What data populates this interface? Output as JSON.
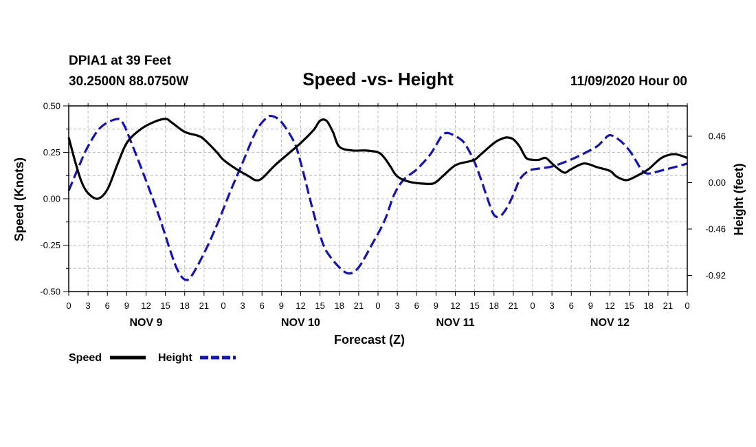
{
  "header": {
    "station": "DPIA1 at 39 Feet",
    "coords": "30.2500N 88.0750W",
    "title": "Speed -vs- Height",
    "timestamp": "11/09/2020 Hour 00"
  },
  "chart_data": {
    "type": "line",
    "title": "Speed -vs- Height",
    "xlabel": "Forecast (Z)",
    "ylabel": "Speed (Knots)",
    "y2label": "Height (feet)",
    "x_unit": "hours from 11/09/2020 00Z",
    "xlim": [
      0,
      96
    ],
    "ylim": [
      -0.5,
      0.5
    ],
    "y2lim": [
      -1.08,
      0.76
    ],
    "yticks": [
      "0.50",
      "0.25",
      "0.00",
      "-0.25",
      "-0.50"
    ],
    "yticks_values": [
      0.5,
      0.25,
      0,
      -0.25,
      -0.5
    ],
    "y2ticks": [
      "0.46",
      "0.00",
      "-0.46",
      "-0.92"
    ],
    "y2ticks_values": [
      0.46,
      0,
      -0.46,
      -0.92
    ],
    "xticks": [
      "0",
      "3",
      "6",
      "9",
      "12",
      "15",
      "18",
      "21",
      "0",
      "3",
      "6",
      "9",
      "12",
      "15",
      "18",
      "21",
      "0",
      "3",
      "6",
      "9",
      "12",
      "15",
      "18",
      "21",
      "0",
      "3",
      "6",
      "9",
      "12",
      "15",
      "18",
      "21",
      "0"
    ],
    "day_labels": [
      {
        "label": "NOV 9",
        "hour": 12
      },
      {
        "label": "NOV 10",
        "hour": 36
      },
      {
        "label": "NOV 11",
        "hour": 60
      },
      {
        "label": "NOV 12",
        "hour": 84
      }
    ],
    "grid": true,
    "legend_position": "bottom-left",
    "series": [
      {
        "name": "Speed",
        "axis": "left",
        "color": "#000000",
        "style": "solid",
        "points": [
          [
            0,
            0.33
          ],
          [
            1,
            0.2
          ],
          [
            2,
            0.09
          ],
          [
            3,
            0.03
          ],
          [
            4.5,
            0.0
          ],
          [
            6,
            0.05
          ],
          [
            7.5,
            0.18
          ],
          [
            9,
            0.3
          ],
          [
            11,
            0.37
          ],
          [
            13,
            0.41
          ],
          [
            15,
            0.43
          ],
          [
            16,
            0.41
          ],
          [
            18,
            0.36
          ],
          [
            20,
            0.34
          ],
          [
            21,
            0.32
          ],
          [
            23,
            0.25
          ],
          [
            24,
            0.21
          ],
          [
            26,
            0.16
          ],
          [
            28,
            0.12
          ],
          [
            29,
            0.1
          ],
          [
            30,
            0.11
          ],
          [
            32,
            0.18
          ],
          [
            34,
            0.24
          ],
          [
            36,
            0.3
          ],
          [
            38,
            0.37
          ],
          [
            39,
            0.42
          ],
          [
            40,
            0.42
          ],
          [
            41,
            0.36
          ],
          [
            42,
            0.28
          ],
          [
            44,
            0.26
          ],
          [
            46,
            0.26
          ],
          [
            48,
            0.25
          ],
          [
            49,
            0.22
          ],
          [
            50,
            0.17
          ],
          [
            51,
            0.12
          ],
          [
            53,
            0.09
          ],
          [
            56,
            0.08
          ],
          [
            57,
            0.09
          ],
          [
            58,
            0.12
          ],
          [
            60,
            0.18
          ],
          [
            62,
            0.2
          ],
          [
            63,
            0.21
          ],
          [
            64,
            0.24
          ],
          [
            66,
            0.3
          ],
          [
            67,
            0.32
          ],
          [
            68,
            0.33
          ],
          [
            69,
            0.32
          ],
          [
            70,
            0.28
          ],
          [
            71,
            0.22
          ],
          [
            72,
            0.21
          ],
          [
            73,
            0.21
          ],
          [
            74,
            0.22
          ],
          [
            75,
            0.19
          ],
          [
            76,
            0.16
          ],
          [
            77,
            0.14
          ],
          [
            78,
            0.16
          ],
          [
            80,
            0.19
          ],
          [
            82,
            0.17
          ],
          [
            84,
            0.15
          ],
          [
            85,
            0.12
          ],
          [
            86.5,
            0.1
          ],
          [
            88,
            0.12
          ],
          [
            90,
            0.16
          ],
          [
            92,
            0.22
          ],
          [
            94,
            0.24
          ],
          [
            96,
            0.22
          ]
        ]
      },
      {
        "name": "Height",
        "axis": "right",
        "color": "#1111cc",
        "style": "dashed",
        "points": [
          [
            0,
            -0.08
          ],
          [
            1.5,
            0.15
          ],
          [
            3,
            0.36
          ],
          [
            5,
            0.55
          ],
          [
            7.5,
            0.63
          ],
          [
            8.5,
            0.58
          ],
          [
            10,
            0.35
          ],
          [
            12,
            0.02
          ],
          [
            14,
            -0.33
          ],
          [
            16,
            -0.72
          ],
          [
            17,
            -0.88
          ],
          [
            18,
            -0.96
          ],
          [
            19,
            -0.93
          ],
          [
            21,
            -0.7
          ],
          [
            23,
            -0.42
          ],
          [
            25,
            -0.1
          ],
          [
            27,
            0.2
          ],
          [
            29,
            0.5
          ],
          [
            30.5,
            0.63
          ],
          [
            31.5,
            0.66
          ],
          [
            33,
            0.6
          ],
          [
            35,
            0.4
          ],
          [
            36,
            0.2
          ],
          [
            37,
            -0.05
          ],
          [
            38,
            -0.3
          ],
          [
            39,
            -0.52
          ],
          [
            40,
            -0.68
          ],
          [
            42,
            -0.84
          ],
          [
            43.5,
            -0.9
          ],
          [
            45,
            -0.84
          ],
          [
            47,
            -0.62
          ],
          [
            49,
            -0.38
          ],
          [
            50.5,
            -0.12
          ],
          [
            52,
            0.03
          ],
          [
            54,
            0.13
          ],
          [
            56,
            0.27
          ],
          [
            57,
            0.37
          ],
          [
            58,
            0.47
          ],
          [
            59,
            0.49
          ],
          [
            61,
            0.42
          ],
          [
            62,
            0.33
          ],
          [
            63,
            0.2
          ],
          [
            64,
            0.03
          ],
          [
            65,
            -0.16
          ],
          [
            66,
            -0.32
          ],
          [
            67,
            -0.33
          ],
          [
            68,
            -0.25
          ],
          [
            69,
            -0.12
          ],
          [
            70,
            0.03
          ],
          [
            71,
            0.1
          ],
          [
            72,
            0.13
          ],
          [
            75,
            0.16
          ],
          [
            78,
            0.23
          ],
          [
            80,
            0.29
          ],
          [
            82,
            0.36
          ],
          [
            83,
            0.42
          ],
          [
            84,
            0.47
          ],
          [
            85.5,
            0.42
          ],
          [
            87,
            0.32
          ],
          [
            88,
            0.22
          ],
          [
            89,
            0.12
          ],
          [
            90,
            0.09
          ],
          [
            92,
            0.12
          ],
          [
            95,
            0.17
          ],
          [
            96,
            0.19
          ]
        ]
      }
    ]
  },
  "legend": {
    "speed_label": "Speed",
    "height_label": "Height"
  },
  "colors": {
    "speed": "#000000",
    "height": "#1111cc",
    "grid": "#bbbbbb"
  }
}
